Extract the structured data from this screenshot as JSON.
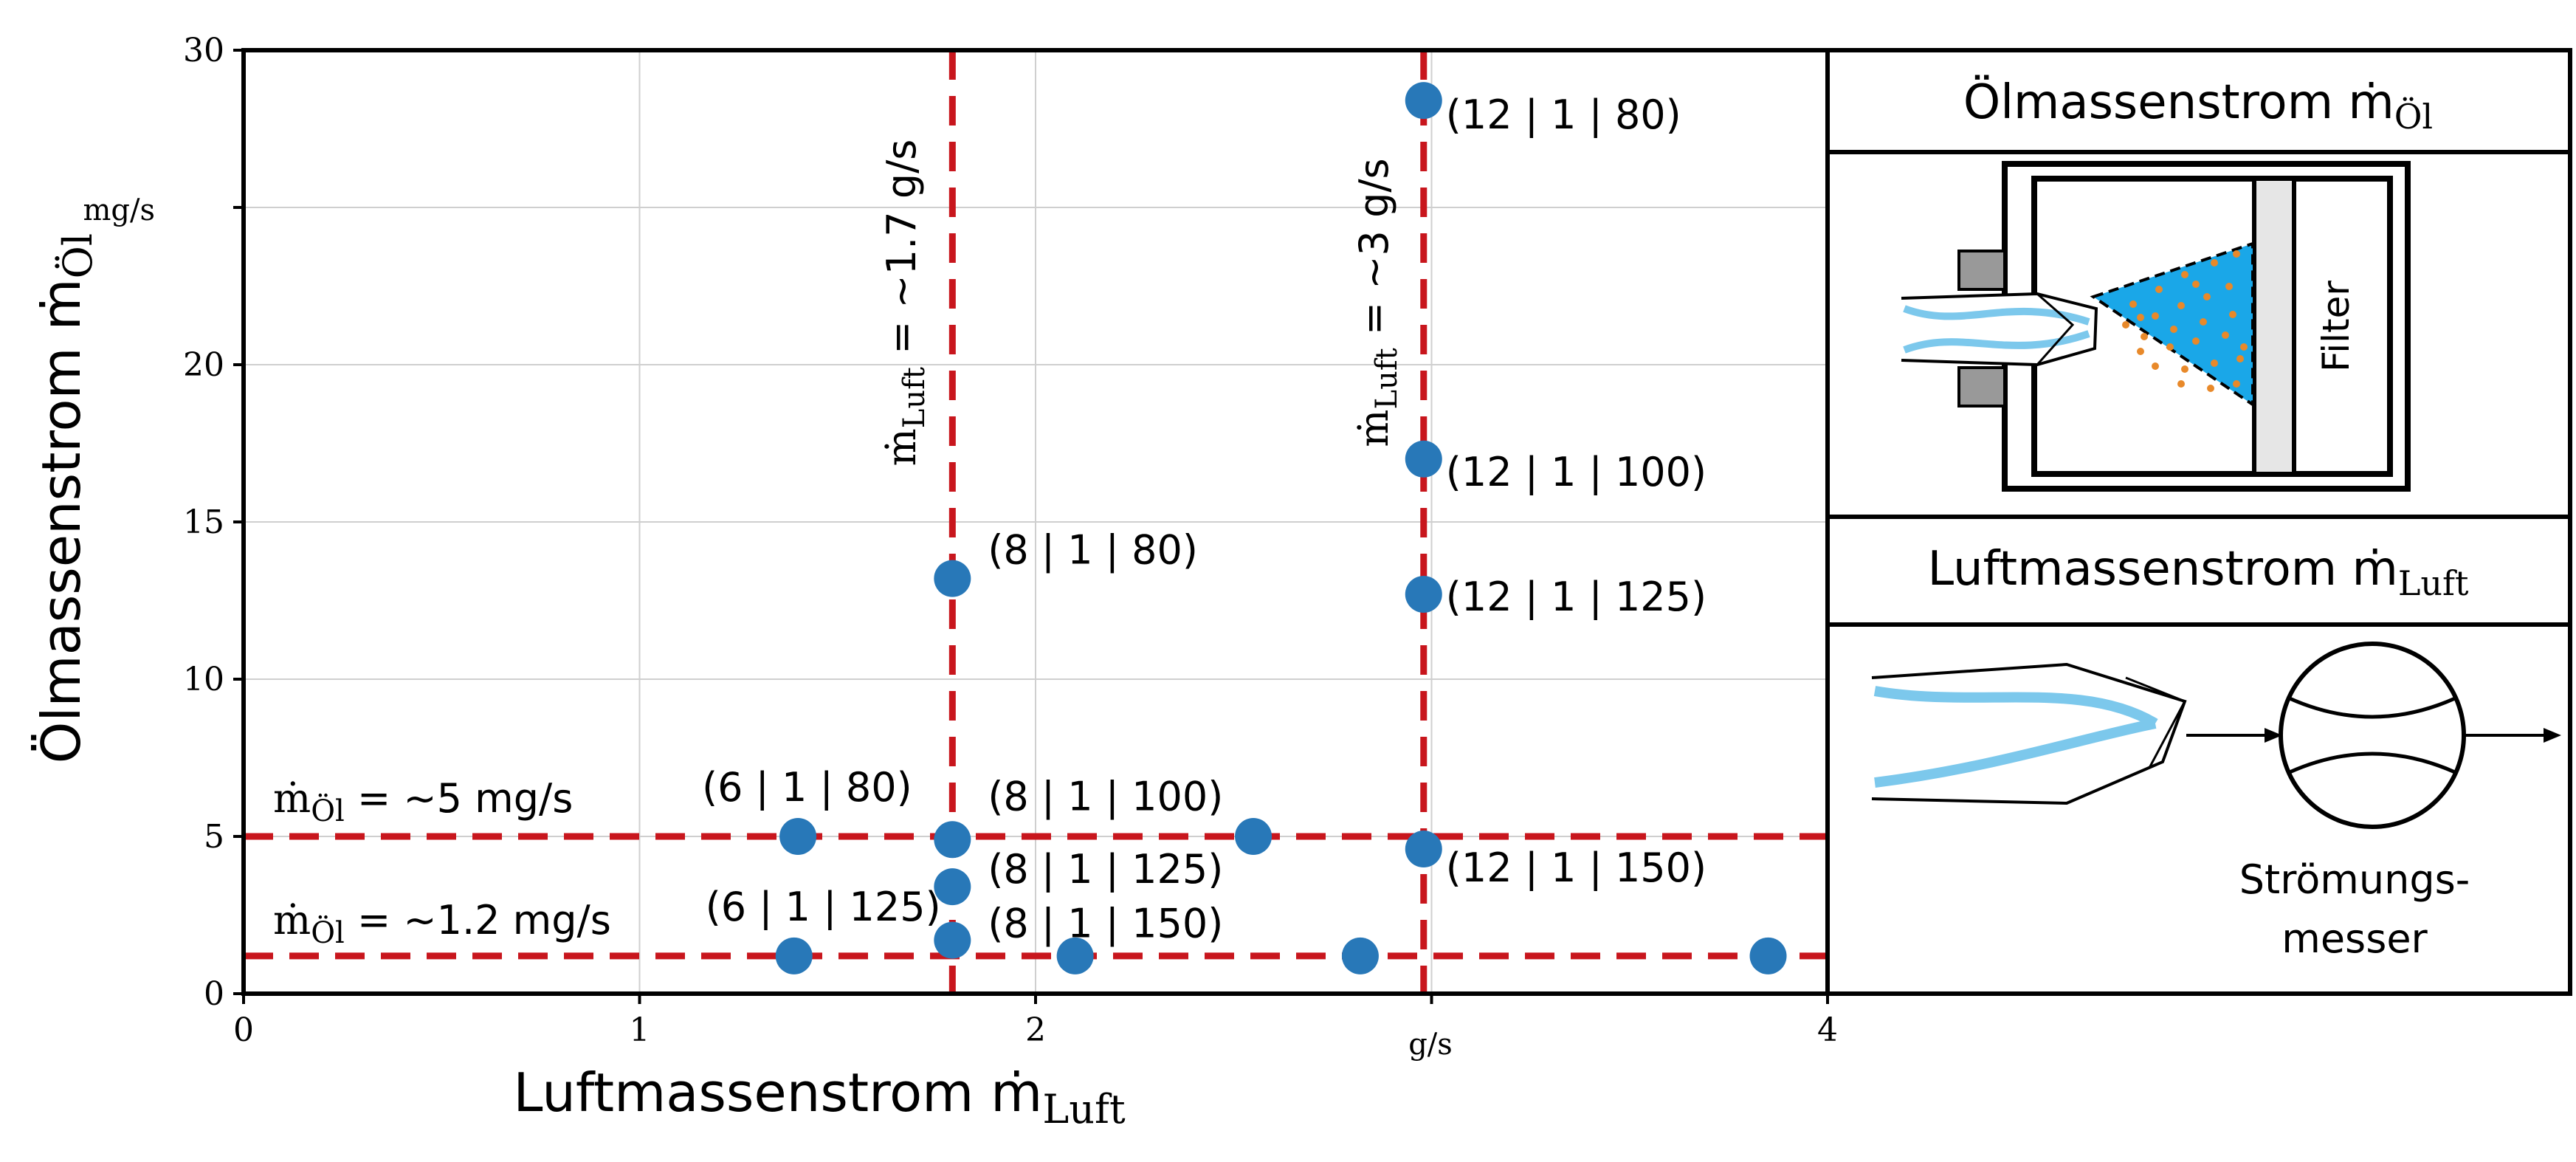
{
  "chart_data": {
    "type": "scatter",
    "xlabel": "Luftmassenstrom ṁ",
    "xlabel_sub": "Luft",
    "ylabel": "Ölmassenstrom ṁ",
    "ylabel_sub": "Öl",
    "xunit": "g/s",
    "yunit": "mg/s",
    "xlim": [
      0,
      4
    ],
    "ylim": [
      0,
      30
    ],
    "xticks": [
      "0",
      "1",
      "2",
      "",
      "4"
    ],
    "xtick_values": [
      0,
      1,
      2,
      3,
      4
    ],
    "yticks": [
      "0",
      "5",
      "10",
      "15",
      "20",
      "",
      "30"
    ],
    "ytick_values": [
      0,
      5,
      10,
      15,
      20,
      25,
      30
    ],
    "grid": true,
    "marker_color": "#2878b8",
    "points": [
      {
        "x": 1.39,
        "y": 1.2,
        "label": "(6 | 1 | 125)"
      },
      {
        "x": 1.4,
        "y": 5.0,
        "label": "(6 | 1 | 80)"
      },
      {
        "x": 1.79,
        "y": 13.2,
        "label": "(8 | 1 | 80)"
      },
      {
        "x": 1.79,
        "y": 4.9,
        "label": "(8 | 1 | 100)"
      },
      {
        "x": 1.79,
        "y": 3.4,
        "label": "(8 | 1 | 125)"
      },
      {
        "x": 1.79,
        "y": 1.7,
        "label": "(8 | 1 | 150)"
      },
      {
        "x": 2.1,
        "y": 1.2,
        "label": ""
      },
      {
        "x": 2.55,
        "y": 5.0,
        "label": ""
      },
      {
        "x": 2.82,
        "y": 1.2,
        "label": ""
      },
      {
        "x": 2.98,
        "y": 28.4,
        "label": "(12 | 1 | 80)"
      },
      {
        "x": 2.98,
        "y": 17.0,
        "label": "(12 | 1 | 100)"
      },
      {
        "x": 2.98,
        "y": 12.7,
        "label": "(12 | 1 | 125)"
      },
      {
        "x": 2.98,
        "y": 4.6,
        "label": "(12 | 1 | 150)"
      },
      {
        "x": 3.85,
        "y": 1.2,
        "label": ""
      }
    ],
    "reference_lines": [
      {
        "orientation": "vertical",
        "value": 1.79,
        "color": "#c8161d",
        "label": "ṁ",
        "label_sub": "Luft",
        "label_value": " = ~1.7 g/s"
      },
      {
        "orientation": "vertical",
        "value": 2.98,
        "color": "#c8161d",
        "label": "ṁ",
        "label_sub": "Luft",
        "label_value": " = ~3 g/s"
      },
      {
        "orientation": "horizontal",
        "value": 5.0,
        "color": "#c8161d",
        "label": "ṁ",
        "label_sub": "Öl",
        "label_value": " = ~5 mg/s"
      },
      {
        "orientation": "horizontal",
        "value": 1.2,
        "color": "#c8161d",
        "label": "ṁ",
        "label_sub": "Öl",
        "label_value": " = ~1.2 mg/s"
      }
    ]
  },
  "panels": {
    "oil": {
      "title": "Ölmassenstrom ṁ",
      "title_sub": "Öl",
      "filter_label": "Filter",
      "spray_color": "#1aa7e8",
      "droplet_color": "#e8892a"
    },
    "air": {
      "title": "Luftmassenstrom ṁ",
      "title_sub": "Luft",
      "meter_label_1": "Strömungs-",
      "meter_label_2": "messer"
    }
  }
}
